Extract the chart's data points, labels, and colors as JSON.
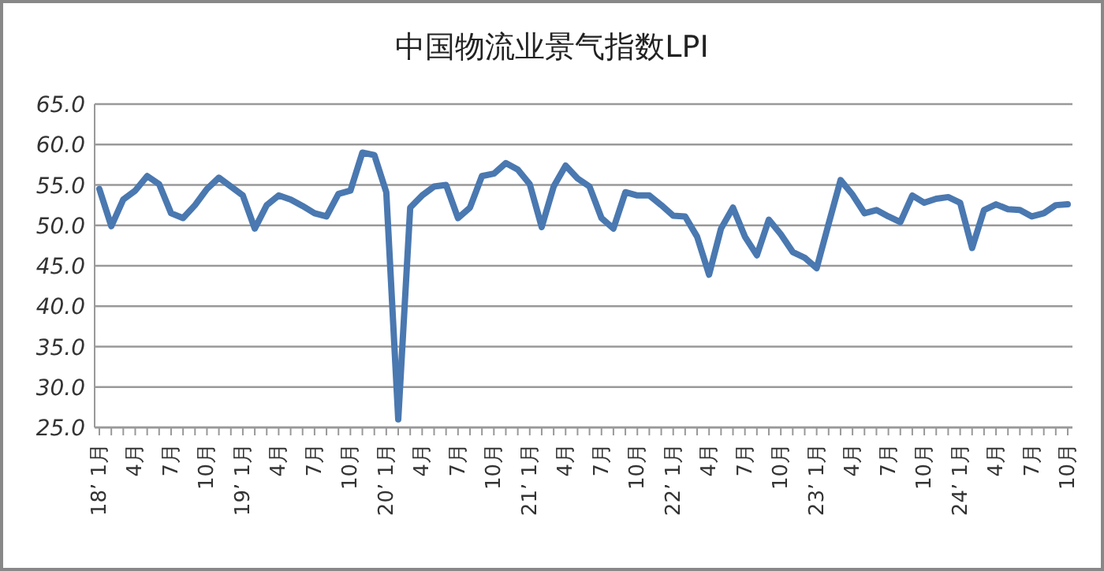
{
  "chart_data": {
    "type": "line",
    "title": "中国物流业景气指数LPI",
    "categories": [
      "18’ 1月",
      null,
      null,
      "4月",
      null,
      null,
      "7月",
      null,
      null,
      "10月",
      null,
      null,
      "19’ 1月",
      null,
      null,
      "4月",
      null,
      null,
      "7月",
      null,
      null,
      "10月",
      null,
      null,
      "20’ 1月",
      null,
      null,
      "4月",
      null,
      null,
      "7月",
      null,
      null,
      "10月",
      null,
      null,
      "21’ 1月",
      null,
      null,
      "4月",
      null,
      null,
      "7月",
      null,
      null,
      "10月",
      null,
      null,
      "22’ 1月",
      null,
      null,
      "4月",
      null,
      null,
      "7月",
      null,
      null,
      "10月",
      null,
      null,
      "23’ 1月",
      null,
      null,
      "4月",
      null,
      null,
      "7月",
      null,
      null,
      "10月",
      null,
      null,
      "24’ 1月",
      null,
      null,
      "4月",
      null,
      null,
      "7月",
      null,
      null,
      "10月"
    ],
    "series": [
      {
        "color": "#4a78b0",
        "values": [
          54.5,
          49.9,
          53.2,
          54.3,
          56.1,
          55.1,
          51.5,
          50.9,
          52.5,
          54.5,
          55.9,
          54.8,
          53.7,
          49.6,
          52.5,
          53.7,
          53.2,
          52.4,
          51.5,
          51.1,
          53.9,
          54.3,
          59.0,
          58.7,
          54.1,
          26.0,
          52.2,
          53.7,
          54.8,
          55.0,
          50.9,
          52.2,
          56.1,
          56.4,
          57.7,
          56.9,
          55.1,
          49.8,
          54.8,
          57.4,
          55.8,
          54.8,
          50.9,
          49.6,
          54.1,
          53.7,
          53.7,
          52.5,
          51.2,
          51.1,
          48.6,
          43.9,
          49.6,
          52.2,
          48.6,
          46.3,
          50.7,
          48.9,
          46.7,
          46.0,
          44.7,
          50.2,
          55.6,
          53.8,
          51.5,
          51.9,
          51.1,
          50.4,
          53.7,
          52.8,
          53.3,
          53.5,
          52.8,
          47.2,
          51.9,
          52.6,
          52.0,
          51.9,
          51.1,
          51.5,
          52.5,
          52.6
        ]
      }
    ],
    "ylim": [
      25,
      65
    ],
    "yticks": [
      {
        "value": 25,
        "label": "25.0"
      },
      {
        "value": 30,
        "label": "30.0"
      },
      {
        "value": 35,
        "label": "35.0"
      },
      {
        "value": 40,
        "label": "40.0"
      },
      {
        "value": 45,
        "label": "45.0"
      },
      {
        "value": 50,
        "label": "50.0"
      },
      {
        "value": 55,
        "label": "55.0"
      },
      {
        "value": 60,
        "label": "60.0"
      },
      {
        "value": 65,
        "label": "65.0"
      }
    ],
    "grid": "y",
    "marker": "none",
    "line_style": "solid"
  }
}
